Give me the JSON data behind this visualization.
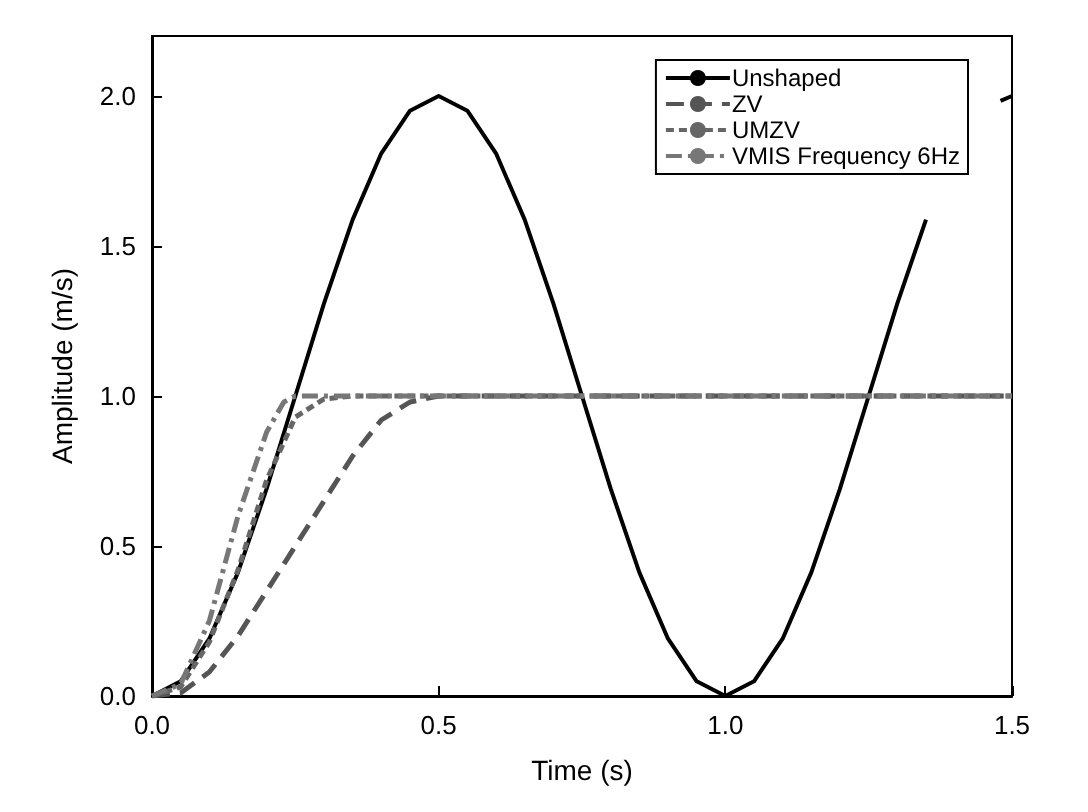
{
  "chart_data": {
    "type": "line",
    "xlabel": "Time (s)",
    "ylabel": "Amplitude (m/s)",
    "xlim": [
      0,
      1.5
    ],
    "ylim": [
      0,
      2.2
    ],
    "xticks": [
      {
        "value": 0,
        "label": "0.0"
      },
      {
        "value": 0.5,
        "label": "0.5"
      },
      {
        "value": 1,
        "label": "1.0"
      },
      {
        "value": 1.5,
        "label": "1.5"
      }
    ],
    "yticks": [
      {
        "value": 0,
        "label": "0.0"
      },
      {
        "value": 0.5,
        "label": "0.5"
      },
      {
        "value": 1,
        "label": "1.0"
      },
      {
        "value": 1.5,
        "label": "1.5"
      },
      {
        "value": 2,
        "label": "2.0"
      }
    ],
    "grid": false,
    "legend": "top right",
    "marker": "none",
    "series": [
      {
        "name": "Unshaped",
        "color": "#000000",
        "line_style": "solid",
        "x": [
          0,
          0.05,
          0.1,
          0.15,
          0.2,
          0.25,
          0.3,
          0.35,
          0.4,
          0.45,
          0.5,
          0.55,
          0.6,
          0.65,
          0.7,
          0.75,
          0.8,
          0.85,
          0.9,
          0.95,
          1,
          1.05,
          1.1,
          1.15,
          1.2,
          1.25,
          1.3,
          1.35,
          1.4,
          1.45,
          1.48,
          1.5
        ],
        "values": [
          0,
          0.049,
          0.191,
          0.412,
          0.691,
          1,
          1.309,
          1.588,
          1.809,
          1.951,
          2,
          1.951,
          1.809,
          1.588,
          1.309,
          1,
          0.691,
          0.412,
          0.191,
          0.049,
          0,
          0.049,
          0.191,
          0.412,
          0.691,
          1,
          1.309,
          1.588,
          null,
          null,
          1.984,
          2
        ]
      },
      {
        "name": "ZV",
        "color": "#555555",
        "line_style": "dashed",
        "x": [
          0,
          0.05,
          0.1,
          0.15,
          0.2,
          0.25,
          0.3,
          0.35,
          0.4,
          0.45,
          0.5,
          1,
          1.5
        ],
        "values": [
          0,
          0.01,
          0.08,
          0.2,
          0.35,
          0.5,
          0.65,
          0.8,
          0.92,
          0.98,
          1,
          1,
          1
        ]
      },
      {
        "name": "UMZV",
        "color": "#666666",
        "line_style": "dotted",
        "x": [
          0,
          0.05,
          0.1,
          0.15,
          0.2,
          0.25,
          0.3,
          0.35,
          1,
          1.5
        ],
        "values": [
          0,
          0.03,
          0.18,
          0.42,
          0.72,
          0.93,
          0.99,
          1,
          1,
          1
        ]
      },
      {
        "name": "VMIS Frequency 6Hz",
        "color": "#777777",
        "line_style": "dashdot",
        "x": [
          0,
          0.05,
          0.1,
          0.15,
          0.2,
          0.23,
          0.25,
          0.5,
          1,
          1.5
        ],
        "values": [
          0,
          0.04,
          0.25,
          0.6,
          0.88,
          0.98,
          1,
          1,
          1,
          1
        ]
      }
    ]
  }
}
